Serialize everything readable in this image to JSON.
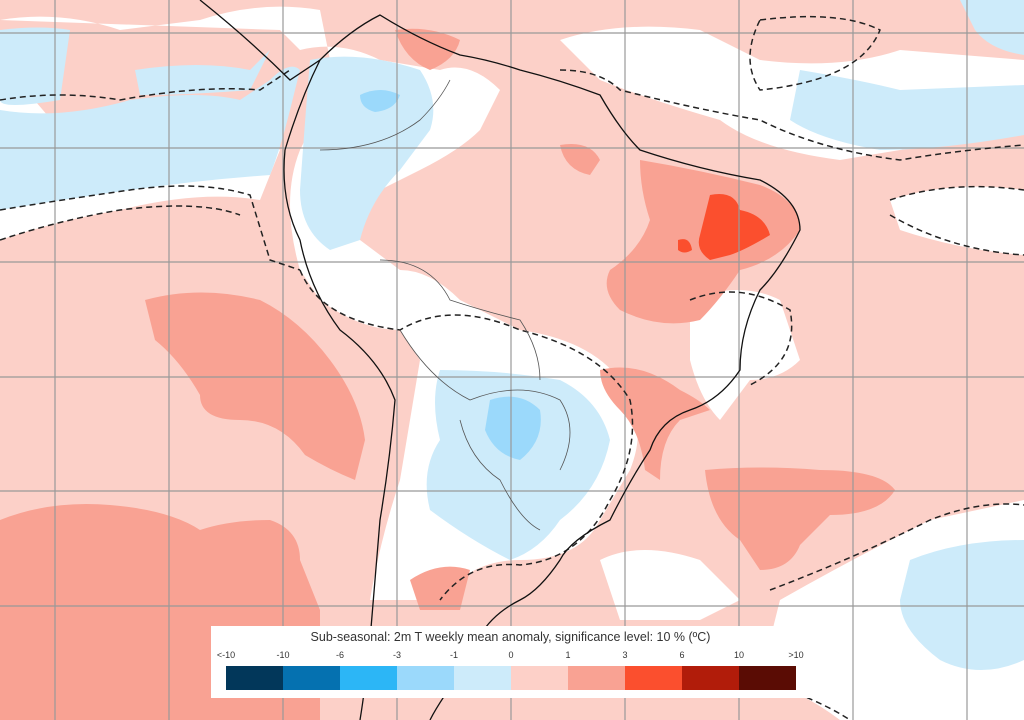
{
  "map": {
    "title": "Sub-seasonal: 2m T weekly mean anomaly, significance level: 10 % (ºC)",
    "region": "South America",
    "background_color": "#fcd0c8"
  },
  "legend": {
    "tick_labels": [
      "<-10",
      "-10",
      "-6",
      "-3",
      "-1",
      "0",
      "1",
      "3",
      "6",
      "10",
      ">10"
    ],
    "colors": [
      "#02375a",
      "#0571b0",
      "#2cb6f6",
      "#9bd9fb",
      "#cdebfa",
      "#fdd0c8",
      "#f9a293",
      "#fb4f2e",
      "#b11c0a",
      "#5a0c04"
    ]
  }
}
